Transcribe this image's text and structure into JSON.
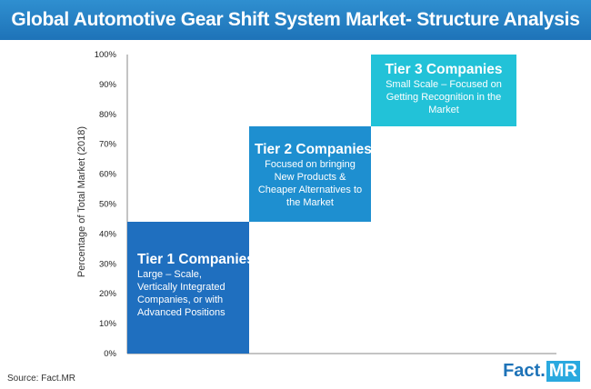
{
  "title": "Global Automotive Gear Shift System Market- Structure Analysis",
  "source": "Source: Fact.MR",
  "logo": {
    "part1": "Fact.",
    "part2": "MR"
  },
  "chart_data": {
    "type": "bar",
    "ylabel": "Percentage of Total Market (2018)",
    "ylim": [
      0,
      100
    ],
    "yticks": [
      "0%",
      "10%",
      "20%",
      "30%",
      "40%",
      "50%",
      "60%",
      "70%",
      "80%",
      "90%",
      "100%"
    ],
    "grid": false,
    "series": [
      {
        "name": "Tier 1 Companies",
        "description": "Large – Scale, Vertically Integrated Companies, or with Advanced Positions",
        "from": 0,
        "to": 44,
        "color": "#1f6fbf"
      },
      {
        "name": "Tier 2 Companies",
        "description": "Focused on bringing New Products & Cheaper Alternatives to the Market",
        "from": 44,
        "to": 76,
        "color": "#1e8fd0"
      },
      {
        "name": "Tier 3 Companies",
        "description": "Small Scale – Focused on Getting Recognition in the Market",
        "from": 76,
        "to": 100,
        "color": "#22c2d8"
      }
    ]
  }
}
